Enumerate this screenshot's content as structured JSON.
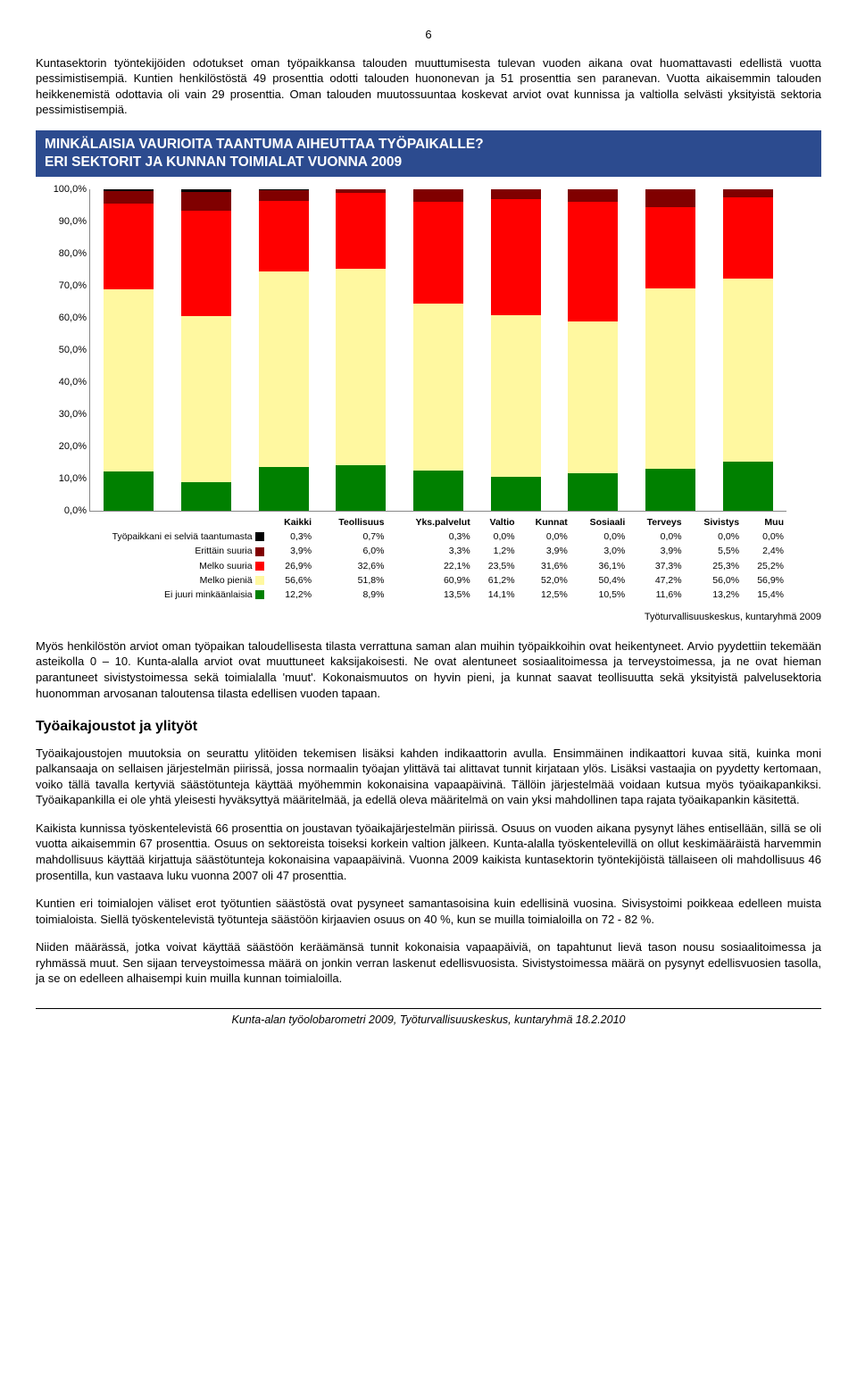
{
  "page_number": "6",
  "intro_paragraph": "Kuntasektorin työntekijöiden odotukset oman työpaikkansa talouden muuttumisesta tulevan vuoden aikana ovat huomattavasti edellistä vuotta pessimistisempiä. Kuntien henkilöstöstä 49 prosenttia odotti talouden huononevan ja 51 prosenttia sen paranevan. Vuotta aikaisemmin talouden heikkenemistä odottavia oli vain 29 prosenttia. Oman talouden muutossuuntaa koskevat arviot ovat kunnissa ja valtiolla selvästi yksityistä sektoria pessimistisempiä.",
  "chart": {
    "title_line1": "MINKÄLAISIA VAURIOITA TAANTUMA AIHEUTTAA TYÖPAIKALLE?",
    "title_line2": "ERI SEKTORIT JA KUNNAN TOIMIALAT VUONNA 2009",
    "type": "stacked-bar",
    "y_ticks": [
      "100,0%",
      "90,0%",
      "80,0%",
      "70,0%",
      "60,0%",
      "50,0%",
      "40,0%",
      "30,0%",
      "20,0%",
      "10,0%",
      "0,0%"
    ],
    "categories": [
      "Kaikki",
      "Teollisuus",
      "Yks.palvelut",
      "Valtio",
      "Kunnat",
      "Sosiaali",
      "Terveys",
      "Sivistys",
      "Muu"
    ],
    "series": [
      {
        "key": "tyop",
        "label": "Työpaikkani ei selviä taantumasta",
        "color": "#000000"
      },
      {
        "key": "erittain",
        "label": "Erittäin suuria",
        "color": "#800000"
      },
      {
        "key": "melko",
        "label": "Melko suuria",
        "color": "#ff0000"
      },
      {
        "key": "pienia",
        "label": "Melko pieniä",
        "color": "#fff8a0"
      },
      {
        "key": "ei",
        "label": "Ei juuri minkäänlaisia",
        "color": "#008000"
      }
    ],
    "data": {
      "tyop": [
        "0,3%",
        "0,7%",
        "0,3%",
        "0,0%",
        "0,0%",
        "0,0%",
        "0,0%",
        "0,0%",
        "0,0%"
      ],
      "erittain": [
        "3,9%",
        "6,0%",
        "3,3%",
        "1,2%",
        "3,9%",
        "3,0%",
        "3,9%",
        "5,5%",
        "2,4%"
      ],
      "melko": [
        "26,9%",
        "32,6%",
        "22,1%",
        "23,5%",
        "31,6%",
        "36,1%",
        "37,3%",
        "25,3%",
        "25,2%"
      ],
      "pienia": [
        "56,6%",
        "51,8%",
        "60,9%",
        "61,2%",
        "52,0%",
        "50,4%",
        "47,2%",
        "56,0%",
        "56,9%"
      ],
      "ei": [
        "12,2%",
        "8,9%",
        "13,5%",
        "14,1%",
        "12,5%",
        "10,5%",
        "11,6%",
        "13,2%",
        "15,4%"
      ]
    },
    "values_numeric": {
      "tyop": [
        0.3,
        0.7,
        0.3,
        0.0,
        0.0,
        0.0,
        0.0,
        0.0,
        0.0
      ],
      "erittain": [
        3.9,
        6.0,
        3.3,
        1.2,
        3.9,
        3.0,
        3.9,
        5.5,
        2.4
      ],
      "melko": [
        26.9,
        32.6,
        22.1,
        23.5,
        31.6,
        36.1,
        37.3,
        25.3,
        25.2
      ],
      "pienia": [
        56.6,
        51.8,
        60.9,
        61.2,
        52.0,
        50.4,
        47.2,
        56.0,
        56.9
      ],
      "ei": [
        12.2,
        8.9,
        13.5,
        14.1,
        12.5,
        10.5,
        11.6,
        13.2,
        15.4
      ]
    },
    "source": "Työturvallisuuskeskus, kuntaryhmä 2009"
  },
  "paragraph_after_chart": "Myös henkilöstön arviot oman työpaikan taloudellisesta tilasta verrattuna saman alan muihin työpaikkoihin ovat heikentyneet. Arvio pyydettiin tekemään asteikolla 0 – 10. Kunta-alalla arviot ovat muuttuneet kaksijakoisesti. Ne ovat alentuneet sosiaalitoimessa ja terveystoimessa, ja ne ovat hieman parantuneet sivistystoimessa sekä toimialalla 'muut'. Kokonaismuutos on hyvin pieni, ja kunnat saavat teollisuutta sekä yksityistä palvelusektoria huonomman arvosanan taloutensa tilasta edellisen vuoden tapaan.",
  "section_heading": "Työaikajoustot ja ylityöt",
  "p3": "Työaikajoustojen muutoksia on seurattu ylitöiden tekemisen lisäksi kahden indikaattorin avulla. Ensimmäinen indikaattori kuvaa sitä, kuinka moni palkansaaja on sellaisen järjestelmän piirissä, jossa normaalin työajan ylittävä tai alittavat tunnit kirjataan ylös. Lisäksi vastaajia on pyydetty kertomaan, voiko tällä tavalla kertyviä säästötunteja käyttää myöhemmin kokonaisina vapaapäivinä. Tällöin järjestelmää voidaan kutsua myös työaikapankiksi. Työaikapankilla ei ole yhtä yleisesti hyväksyttyä määritelmää, ja edellä oleva määritelmä on vain yksi mahdollinen tapa rajata työaikapankin käsitettä.",
  "p4": "Kaikista kunnissa työskentelevistä 66 prosenttia on joustavan työaikajärjestelmän piirissä. Osuus on vuoden aikana pysynyt lähes entisellään, sillä se oli vuotta aikaisemmin 67 prosenttia. Osuus on sektoreista toiseksi korkein valtion jälkeen. Kunta-alalla työskentelevillä on ollut keskimääräistä harvemmin mahdollisuus käyttää kirjattuja säästötunteja kokonaisina vapaapäivinä. Vuonna 2009 kaikista kuntasektorin työntekijöistä tällaiseen oli mahdollisuus 46 prosentilla, kun vastaava luku vuonna 2007 oli 47 prosenttia.",
  "p5": "Kuntien eri toimialojen väliset erot työtuntien säästöstä ovat pysyneet samantasoisina kuin edellisinä vuosina. Sivisystoimi poikkeaa edelleen muista toimialoista. Siellä työskentelevistä työtunteja säästöön kirjaavien osuus on 40 %, kun se muilla toimialoilla on 72 - 82 %.",
  "p6": "Niiden määrässä, jotka voivat käyttää säästöön keräämänsä tunnit kokonaisia vapaapäiviä, on tapahtunut lievä tason nousu sosiaalitoimessa ja ryhmässä muut. Sen sijaan terveystoimessa määrä on jonkin verran laskenut edellisvuosista. Sivistystoimessa määrä on pysynyt edellisvuosien tasolla, ja se on edelleen alhaisempi kuin muilla kunnan toimialoilla.",
  "footer": "Kunta-alan työolobarometri 2009, Työturvallisuuskeskus, kuntaryhmä 18.2.2010"
}
